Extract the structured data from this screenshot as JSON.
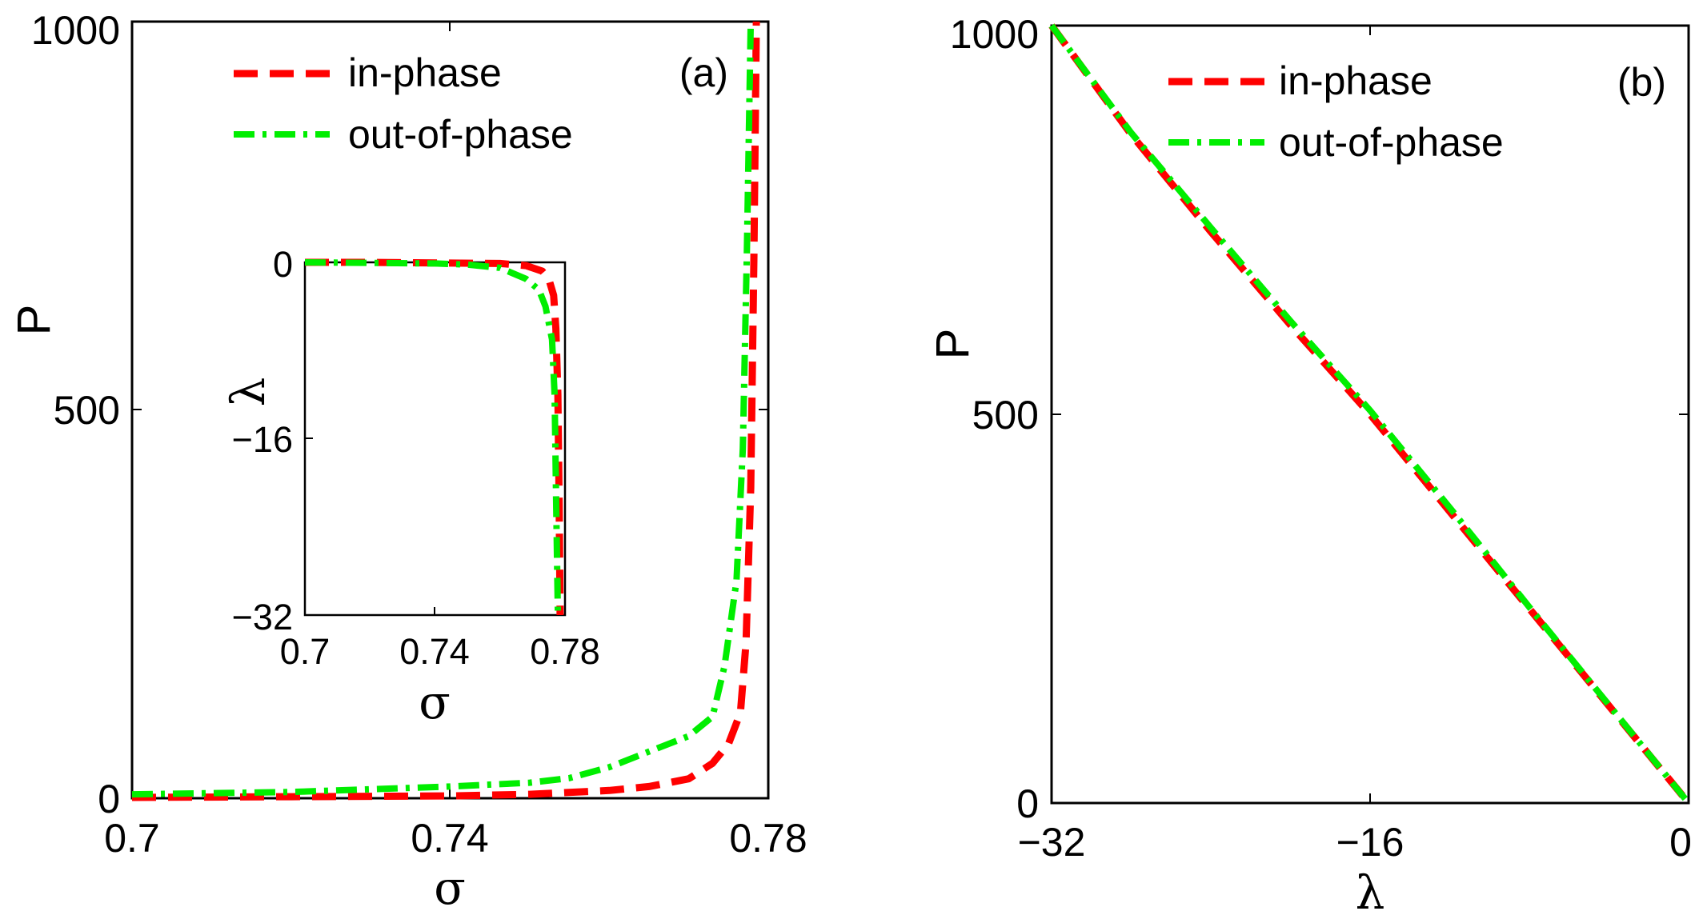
{
  "figure": {
    "series_styles": [
      {
        "name": "in-phase",
        "color": "#ff0000",
        "dash": "dashed"
      },
      {
        "name": "out-of-phase",
        "color": "#00ee00",
        "dash": "dash-dot"
      }
    ]
  },
  "chart_data": [
    {
      "id": "a",
      "type": "line",
      "panel_tag": "(a)",
      "title": "",
      "xlabel": "σ",
      "ylabel": "P",
      "xlim": [
        0.7,
        0.78
      ],
      "ylim": [
        0,
        1000
      ],
      "xticks": [
        0.7,
        0.74,
        0.78
      ],
      "xtick_labels": [
        "0.7",
        "0.74",
        "0.78"
      ],
      "yticks": [
        0,
        500,
        1000
      ],
      "ytick_labels": [
        "0",
        "500",
        "1000"
      ],
      "legend_position": "top-center",
      "series": [
        {
          "name": "in-phase",
          "color": "#ff0000",
          "x": [
            0.7,
            0.72,
            0.74,
            0.75,
            0.76,
            0.765,
            0.77,
            0.773,
            0.775,
            0.7765,
            0.7772,
            0.7778,
            0.7782,
            0.7785
          ],
          "y": [
            1,
            2,
            3,
            5,
            10,
            15,
            25,
            45,
            70,
            110,
            200,
            400,
            700,
            1000
          ]
        },
        {
          "name": "out-of-phase",
          "color": "#00ee00",
          "x": [
            0.7,
            0.72,
            0.74,
            0.75,
            0.755,
            0.76,
            0.765,
            0.77,
            0.773,
            0.7745,
            0.776,
            0.7768,
            0.7773,
            0.7778
          ],
          "y": [
            5,
            8,
            15,
            20,
            26,
            40,
            60,
            80,
            105,
            170,
            280,
            450,
            700,
            1000
          ]
        }
      ],
      "inset": {
        "xlabel": "σ",
        "ylabel": "λ",
        "xlim": [
          0.7,
          0.78
        ],
        "ylim": [
          -32,
          0
        ],
        "xticks": [
          0.7,
          0.74,
          0.78
        ],
        "xtick_labels": [
          "0.7",
          "0.74",
          "0.78"
        ],
        "yticks": [
          -32,
          -16,
          0
        ],
        "ytick_labels": [
          "−32",
          "−16",
          "0"
        ],
        "series": [
          {
            "name": "in-phase",
            "color": "#ff0000",
            "x": [
              0.7,
              0.72,
              0.74,
              0.76,
              0.768,
              0.773,
              0.775,
              0.7765,
              0.7772,
              0.7778,
              0.7782,
              0.7785
            ],
            "y": [
              0,
              0,
              -0.05,
              -0.1,
              -0.3,
              -0.8,
              -1.5,
              -3,
              -6,
              -12,
              -22,
              -32
            ]
          },
          {
            "name": "out-of-phase",
            "color": "#00ee00",
            "x": [
              0.7,
              0.72,
              0.74,
              0.75,
              0.76,
              0.768,
              0.772,
              0.774,
              0.776,
              0.7768,
              0.7773,
              0.7778
            ],
            "y": [
              0,
              -0.05,
              -0.1,
              -0.2,
              -0.5,
              -1.5,
              -2.5,
              -4,
              -7,
              -12,
              -22,
              -32
            ]
          }
        ]
      }
    },
    {
      "id": "b",
      "type": "line",
      "panel_tag": "(b)",
      "title": "",
      "xlabel": "λ",
      "ylabel": "P",
      "xlim": [
        -32,
        0
      ],
      "ylim": [
        0,
        1000
      ],
      "xticks": [
        -32,
        -16,
        0
      ],
      "xtick_labels": [
        "−32",
        "−16",
        "0"
      ],
      "yticks": [
        0,
        500,
        1000
      ],
      "ytick_labels": [
        "0",
        "500",
        "1000"
      ],
      "legend_position": "top-center",
      "series": [
        {
          "name": "in-phase",
          "color": "#ff0000",
          "x": [
            -32,
            -28,
            -24,
            -20,
            -16,
            -12,
            -8,
            -4,
            0
          ],
          "y": [
            1000,
            860,
            735,
            615,
            500,
            375,
            250,
            125,
            0
          ]
        },
        {
          "name": "out-of-phase",
          "color": "#00ee00",
          "x": [
            -32,
            -28,
            -24,
            -20,
            -16,
            -12,
            -8,
            -4,
            0
          ],
          "y": [
            1000,
            862,
            740,
            620,
            505,
            380,
            252,
            126,
            0
          ]
        }
      ]
    }
  ]
}
